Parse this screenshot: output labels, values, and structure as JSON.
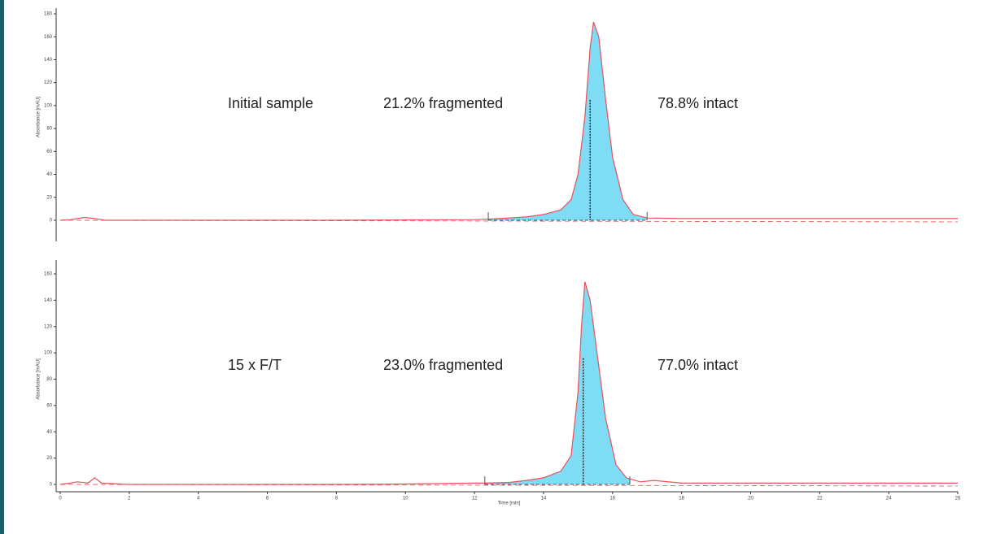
{
  "chart_data": [
    {
      "type": "line",
      "y_label": "Absorbance [mAU]",
      "annotations": [
        "Initial sample",
        "21.2% fragmented",
        "78.8% intact"
      ],
      "x": [
        0,
        0.3,
        0.7,
        1.0,
        1.3,
        2,
        4,
        6,
        8,
        10,
        12,
        12.4,
        13,
        13.5,
        14,
        14.5,
        14.8,
        15.0,
        15.2,
        15.35,
        15.45,
        15.6,
        15.8,
        16.0,
        16.3,
        16.6,
        17,
        18,
        20,
        22,
        24,
        26
      ],
      "values": [
        0,
        0.5,
        2.5,
        1.5,
        0,
        0,
        0,
        0,
        0,
        0.3,
        0.5,
        1,
        2,
        3,
        5,
        9,
        18,
        40,
        90,
        150,
        173,
        160,
        105,
        55,
        18,
        5,
        2,
        1.5,
        1.5,
        1.5,
        1.5,
        1.5
      ],
      "markers": [
        12.4,
        15.35,
        17
      ],
      "color": "#e8505b",
      "fill": "#7fdcf5",
      "xlim": [
        0,
        26
      ],
      "ylim": [
        0,
        180
      ],
      "yticks": [
        0,
        20,
        40,
        60,
        80,
        100,
        120,
        140,
        160,
        180
      ]
    },
    {
      "type": "line",
      "y_label": "Absorbance [mAU]",
      "x_label": "Time [min]",
      "annotations": [
        "15 x F/T",
        "23.0% fragmented",
        "77.0% intact"
      ],
      "x": [
        0,
        0.3,
        0.5,
        0.8,
        1.0,
        1.2,
        2,
        4,
        6,
        8,
        10,
        12,
        12.3,
        13,
        13.5,
        14,
        14.5,
        14.8,
        15.0,
        15.1,
        15.2,
        15.35,
        15.6,
        15.8,
        16.1,
        16.4,
        16.8,
        17.2,
        18,
        20,
        22,
        24,
        26
      ],
      "values": [
        0,
        1,
        2,
        1,
        5,
        1,
        0,
        0,
        0,
        0,
        0.3,
        1,
        1,
        1.5,
        3,
        5,
        10,
        22,
        70,
        120,
        154,
        140,
        90,
        50,
        15,
        5,
        2,
        3,
        1,
        1,
        1,
        1,
        1
      ],
      "markers": [
        12.3,
        15.15,
        16.5
      ],
      "color": "#e8505b",
      "fill": "#7fdcf5",
      "xlim": [
        0,
        26
      ],
      "ylim": [
        0,
        160
      ],
      "yticks": [
        0,
        20,
        40,
        60,
        80,
        100,
        120,
        140,
        160
      ],
      "xticks": [
        0,
        2,
        4,
        6,
        8,
        10,
        12,
        14,
        16,
        18,
        20,
        22,
        24,
        26
      ]
    }
  ]
}
